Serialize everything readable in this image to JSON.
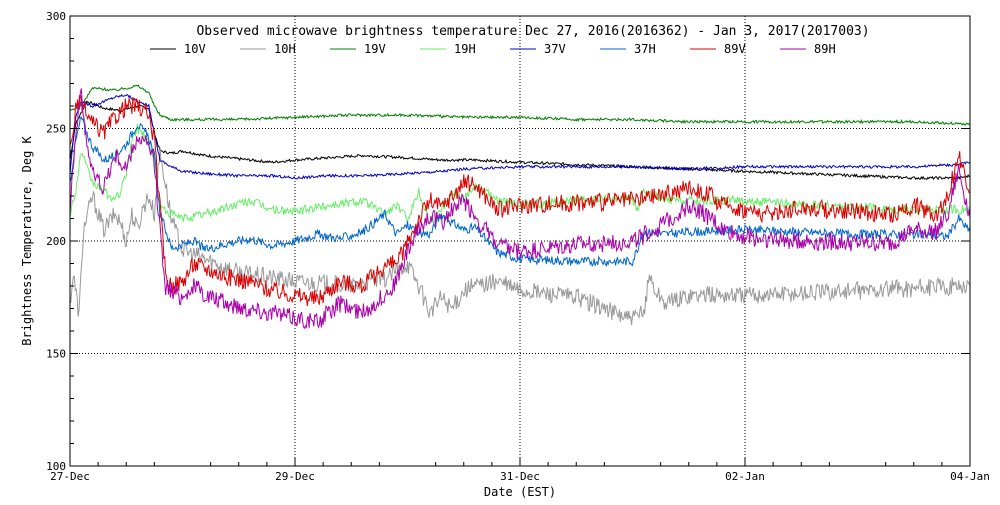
{
  "chart_data": {
    "type": "line",
    "title": "Observed microwave brightness temperature Dec 27, 2016(2016362) - Jan  3, 2017(2017003)",
    "xlabel": "Date (EST)",
    "ylabel": "Brightness Temperature, Deg K",
    "xlim": [
      0,
      8
    ],
    "ylim": [
      100,
      300
    ],
    "x_ticks": [
      {
        "value": 0,
        "label": "27-Dec"
      },
      {
        "value": 2,
        "label": "29-Dec"
      },
      {
        "value": 4,
        "label": "31-Dec"
      },
      {
        "value": 6,
        "label": "02-Jan"
      },
      {
        "value": 8,
        "label": "04-Jan"
      }
    ],
    "y_ticks": [
      {
        "value": 100,
        "label": "100"
      },
      {
        "value": 150,
        "label": "150"
      },
      {
        "value": 200,
        "label": "200"
      },
      {
        "value": 250,
        "label": "250"
      },
      {
        "value": 300,
        "label": "300"
      }
    ],
    "grid_x": [
      2,
      4,
      6
    ],
    "grid_y": [
      150,
      200,
      250
    ],
    "grid_style": "dotted",
    "legend_position": "top",
    "series": [
      {
        "name": "10V",
        "color": "#000000",
        "x": [
          0,
          0.05,
          0.15,
          0.3,
          0.45,
          0.6,
          0.7,
          0.75,
          0.8,
          0.9,
          1.0,
          1.2,
          1.4,
          1.6,
          1.8,
          2.0,
          2.3,
          2.6,
          3.0,
          3.3,
          3.6,
          4.0,
          4.5,
          5.0,
          5.5,
          6.0,
          6.5,
          7.0,
          7.5,
          7.9,
          8.0
        ],
        "y": [
          236,
          252,
          262,
          259,
          258,
          260,
          259,
          248,
          240,
          239,
          240,
          238,
          237,
          236,
          235,
          236,
          237,
          238,
          237,
          236,
          236,
          235,
          234,
          233,
          232,
          231,
          230,
          229,
          228,
          228,
          229
        ]
      },
      {
        "name": "10H",
        "color": "#999999",
        "x": [
          0,
          0.03,
          0.08,
          0.12,
          0.2,
          0.3,
          0.4,
          0.45,
          0.5,
          0.55,
          0.6,
          0.65,
          0.7,
          0.75,
          0.8,
          0.9,
          1.0,
          1.5,
          2.0,
          2.5,
          2.8,
          3.0,
          3.1,
          3.2,
          3.3,
          3.4,
          3.5,
          3.6,
          3.8,
          4.0,
          4.5,
          5.0,
          5.1,
          5.15,
          5.2,
          5.3,
          5.5,
          6.0,
          6.5,
          7.0,
          7.5,
          7.9,
          8.0
        ],
        "y": [
          173,
          185,
          167,
          205,
          220,
          205,
          212,
          208,
          200,
          212,
          205,
          215,
          220,
          212,
          240,
          210,
          196,
          186,
          182,
          180,
          183,
          190,
          180,
          168,
          175,
          170,
          178,
          180,
          182,
          178,
          175,
          165,
          168,
          185,
          178,
          172,
          176,
          176,
          177,
          178,
          179,
          180,
          180
        ]
      },
      {
        "name": "19V",
        "color": "#008000",
        "x": [
          0,
          0.1,
          0.2,
          0.4,
          0.6,
          0.7,
          0.75,
          0.8,
          0.9,
          1.0,
          1.5,
          2.0,
          2.5,
          3.0,
          3.5,
          4.0,
          4.5,
          5.0,
          5.5,
          6.0,
          6.5,
          7.0,
          7.5,
          8.0
        ],
        "y": [
          258,
          260,
          268,
          267,
          269,
          266,
          260,
          256,
          254,
          254,
          254,
          255,
          256,
          256,
          255,
          255,
          254,
          254,
          253,
          253,
          253,
          253,
          253,
          252
        ]
      },
      {
        "name": "19H",
        "color": "#66ee66",
        "x": [
          0,
          0.05,
          0.1,
          0.15,
          0.2,
          0.3,
          0.4,
          0.45,
          0.5,
          0.55,
          0.6,
          0.65,
          0.7,
          0.75,
          0.8,
          0.9,
          1.0,
          1.2,
          1.4,
          1.6,
          1.8,
          2.0,
          2.3,
          2.6,
          2.8,
          2.9,
          3.0,
          3.1,
          3.2,
          3.3,
          3.4,
          3.5,
          3.6,
          3.8,
          4.0,
          4.5,
          5.0,
          5.05,
          5.1,
          5.3,
          5.5,
          6.0,
          6.5,
          7.0,
          7.5,
          8.0
        ],
        "y": [
          212,
          222,
          240,
          232,
          226,
          222,
          218,
          222,
          230,
          245,
          250,
          248,
          244,
          236,
          215,
          212,
          210,
          212,
          215,
          218,
          214,
          213,
          216,
          218,
          212,
          216,
          210,
          222,
          208,
          214,
          222,
          219,
          225,
          218,
          216,
          218,
          219,
          212,
          222,
          218,
          218,
          218,
          216,
          215,
          214,
          214
        ]
      },
      {
        "name": "37V",
        "color": "#0000cc",
        "x": [
          0,
          0.05,
          0.1,
          0.2,
          0.3,
          0.4,
          0.5,
          0.6,
          0.7,
          0.75,
          0.8,
          0.9,
          1.0,
          1.2,
          1.5,
          1.8,
          2.0,
          2.3,
          2.6,
          3.0,
          3.3,
          3.5,
          4.0,
          4.5,
          5.0,
          5.5,
          6.0,
          6.5,
          7.0,
          7.5,
          7.9,
          8.0
        ],
        "y": [
          230,
          255,
          262,
          260,
          262,
          264,
          265,
          262,
          260,
          248,
          236,
          233,
          231,
          230,
          229,
          229,
          228,
          229,
          229,
          230,
          231,
          232,
          233,
          233,
          233,
          232,
          233,
          233,
          233,
          233,
          234,
          235
        ]
      },
      {
        "name": "37H",
        "color": "#0066cc",
        "x": [
          0,
          0.05,
          0.1,
          0.15,
          0.2,
          0.3,
          0.4,
          0.5,
          0.6,
          0.7,
          0.75,
          0.8,
          0.85,
          0.9,
          1.0,
          1.1,
          1.2,
          1.4,
          1.6,
          1.8,
          2.0,
          2.2,
          2.4,
          2.6,
          2.8,
          2.9,
          3.0,
          3.1,
          3.2,
          3.3,
          3.4,
          3.5,
          3.6,
          3.8,
          4.0,
          4.5,
          5.0,
          5.1,
          5.3,
          5.5,
          6.0,
          6.5,
          7.0,
          7.5,
          7.8,
          7.9,
          8.0
        ],
        "y": [
          226,
          244,
          255,
          248,
          242,
          236,
          238,
          243,
          252,
          246,
          238,
          212,
          205,
          197,
          198,
          200,
          196,
          199,
          201,
          198,
          200,
          203,
          201,
          204,
          212,
          203,
          207,
          204,
          203,
          212,
          208,
          205,
          206,
          195,
          192,
          191,
          191,
          204,
          203,
          204,
          205,
          204,
          203,
          203,
          202,
          210,
          204
        ]
      },
      {
        "name": "89V",
        "color": "#dd0000",
        "x": [
          0,
          0.05,
          0.1,
          0.15,
          0.2,
          0.3,
          0.4,
          0.5,
          0.6,
          0.7,
          0.75,
          0.8,
          0.85,
          0.9,
          1.0,
          1.1,
          1.2,
          1.4,
          1.6,
          1.8,
          2.0,
          2.2,
          2.4,
          2.6,
          2.8,
          2.9,
          3.0,
          3.1,
          3.2,
          3.3,
          3.4,
          3.5,
          3.6,
          3.8,
          4.0,
          4.5,
          5.0,
          5.2,
          5.4,
          5.5,
          5.7,
          5.8,
          6.0,
          6.2,
          6.5,
          7.0,
          7.3,
          7.5,
          7.7,
          7.8,
          7.9,
          8.0
        ],
        "y": [
          240,
          258,
          262,
          256,
          252,
          248,
          255,
          260,
          260,
          256,
          245,
          215,
          185,
          180,
          182,
          190,
          188,
          184,
          182,
          178,
          176,
          174,
          182,
          180,
          189,
          190,
          199,
          210,
          218,
          215,
          220,
          226,
          225,
          214,
          216,
          217,
          218,
          220,
          222,
          224,
          220,
          216,
          214,
          212,
          215,
          213,
          211,
          216,
          212,
          220,
          238,
          222
        ]
      },
      {
        "name": "89H",
        "color": "#aa00aa",
        "x": [
          0,
          0.05,
          0.1,
          0.15,
          0.2,
          0.3,
          0.4,
          0.5,
          0.6,
          0.7,
          0.75,
          0.8,
          0.85,
          0.9,
          1.0,
          1.1,
          1.2,
          1.4,
          1.6,
          1.8,
          2.0,
          2.2,
          2.4,
          2.6,
          2.8,
          2.9,
          3.0,
          3.1,
          3.2,
          3.3,
          3.4,
          3.5,
          3.6,
          3.8,
          4.0,
          4.5,
          5.0,
          5.2,
          5.4,
          5.5,
          5.7,
          5.8,
          6.0,
          6.2,
          6.5,
          7.0,
          7.3,
          7.5,
          7.7,
          7.8,
          7.9,
          8.0
        ],
        "y": [
          216,
          248,
          265,
          244,
          230,
          224,
          238,
          232,
          246,
          242,
          234,
          205,
          180,
          178,
          175,
          180,
          176,
          172,
          170,
          168,
          166,
          164,
          172,
          168,
          176,
          182,
          195,
          205,
          212,
          208,
          214,
          218,
          211,
          198,
          195,
          198,
          200,
          205,
          212,
          216,
          210,
          205,
          202,
          201,
          200,
          199,
          199,
          205,
          204,
          212,
          232,
          210
        ]
      }
    ]
  }
}
